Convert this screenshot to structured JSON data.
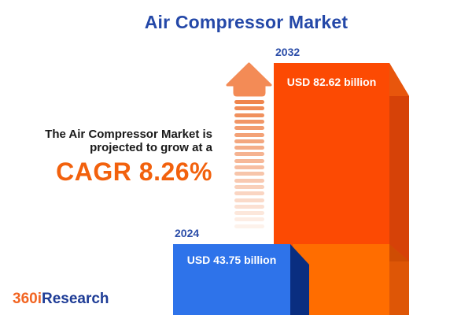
{
  "title": "Air Compressor Market",
  "description": {
    "line1": "The Air Compressor Market is",
    "line2": "projected to grow at a",
    "cagr": "CAGR 8.26%"
  },
  "bars": [
    {
      "year": "2024",
      "value_label": "USD 43.75 billion",
      "value_billion_usd": 43.75,
      "face_color": "#2e73ea",
      "side_color": "#0a2e80"
    },
    {
      "year": "2032",
      "value_label": "USD 82.62 billion",
      "value_billion_usd": 82.62,
      "face_color": "#fc4a03",
      "side_color": "#d64208"
    }
  ],
  "chart_data": {
    "type": "bar",
    "title": "Air Compressor Market",
    "categories": [
      "2024",
      "2032"
    ],
    "values": [
      43.75,
      82.62
    ],
    "unit": "USD billion",
    "value_labels": [
      "USD 43.75 billion",
      "USD 82.62 billion"
    ],
    "cagr_percent": 8.26,
    "legend": "none",
    "grid": false,
    "colors": {
      "bar_2024_face": "#2e73ea",
      "bar_2024_side": "#0a2e80",
      "bar_2032_face": "#fc4a03",
      "bar_2032_side": "#d64208",
      "back_bar_face": "#ff6d00",
      "arrow": "#f38b56",
      "cagr_text": "#f2610d",
      "title_text": "#2448a8"
    }
  },
  "logo": {
    "part1": "360i",
    "part2": "Research"
  }
}
